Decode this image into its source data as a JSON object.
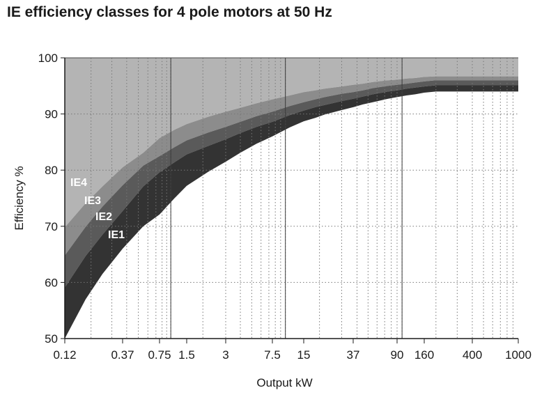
{
  "chart_data": {
    "type": "area",
    "title": "IE efficiency classes for 4 pole motors at 50 Hz",
    "xlabel": "Output kW",
    "ylabel": "Efficiency %",
    "ylim": [
      50,
      100
    ],
    "y_ticks": [
      50,
      60,
      70,
      80,
      90,
      100
    ],
    "x_scale": "log",
    "xlim": [
      0.12,
      1000
    ],
    "x_ticks": [
      "0.12",
      "0.37",
      "0.75",
      "1.5",
      "3",
      "7.5",
      "15",
      "37",
      "90",
      "160",
      "400",
      "1000"
    ],
    "x_ticks_values": [
      0.12,
      0.37,
      0.75,
      1.5,
      3,
      7.5,
      15,
      37,
      90,
      160,
      400,
      1000
    ],
    "grid": true,
    "colors": {
      "IE1": "#333333",
      "IE2": "#5a5a5a",
      "IE3": "#8c8c8c",
      "IE4": "#b4b4b4"
    },
    "x": [
      0.12,
      0.18,
      0.25,
      0.37,
      0.55,
      0.75,
      1.1,
      1.5,
      2.2,
      3,
      4,
      5.5,
      7.5,
      11,
      15,
      18.5,
      22,
      30,
      37,
      45,
      55,
      75,
      90,
      110,
      132,
      160,
      200,
      1000
    ],
    "series": [
      {
        "name": "IE1",
        "values": [
          50.0,
          57.0,
          61.5,
          66.0,
          70.0,
          72.1,
          75.0,
          77.2,
          79.7,
          81.5,
          83.1,
          84.7,
          86.0,
          87.6,
          88.7,
          89.3,
          89.9,
          90.7,
          91.2,
          91.7,
          92.1,
          92.7,
          93.0,
          93.3,
          93.5,
          93.8,
          94.0,
          94.0
        ]
      },
      {
        "name": "IE2",
        "values": [
          59.1,
          64.7,
          68.5,
          72.7,
          77.1,
          79.6,
          81.4,
          82.8,
          84.3,
          85.5,
          86.6,
          87.7,
          88.6,
          89.8,
          90.6,
          91.2,
          91.6,
          92.3,
          92.7,
          93.1,
          93.5,
          94.0,
          94.2,
          94.5,
          94.7,
          94.9,
          95.1,
          95.1
        ]
      },
      {
        "name": "IE3",
        "values": [
          64.8,
          69.9,
          73.5,
          77.3,
          80.8,
          82.5,
          84.1,
          85.3,
          86.7,
          87.7,
          88.6,
          89.6,
          90.4,
          91.4,
          92.1,
          92.6,
          93.0,
          93.6,
          93.9,
          94.2,
          94.6,
          95.0,
          95.2,
          95.4,
          95.6,
          95.8,
          96.0,
          96.0
        ]
      },
      {
        "name": "IE4",
        "values": [
          69.8,
          74.1,
          77.1,
          80.5,
          83.1,
          85.7,
          87.2,
          88.2,
          89.5,
          90.4,
          91.1,
          91.9,
          92.6,
          93.3,
          93.9,
          94.2,
          94.5,
          94.9,
          95.2,
          95.4,
          95.7,
          96.0,
          96.1,
          96.3,
          96.4,
          96.6,
          96.7,
          96.7
        ]
      }
    ],
    "band_labels": [
      "IE4",
      "IE3",
      "IE2",
      "IE1"
    ]
  }
}
